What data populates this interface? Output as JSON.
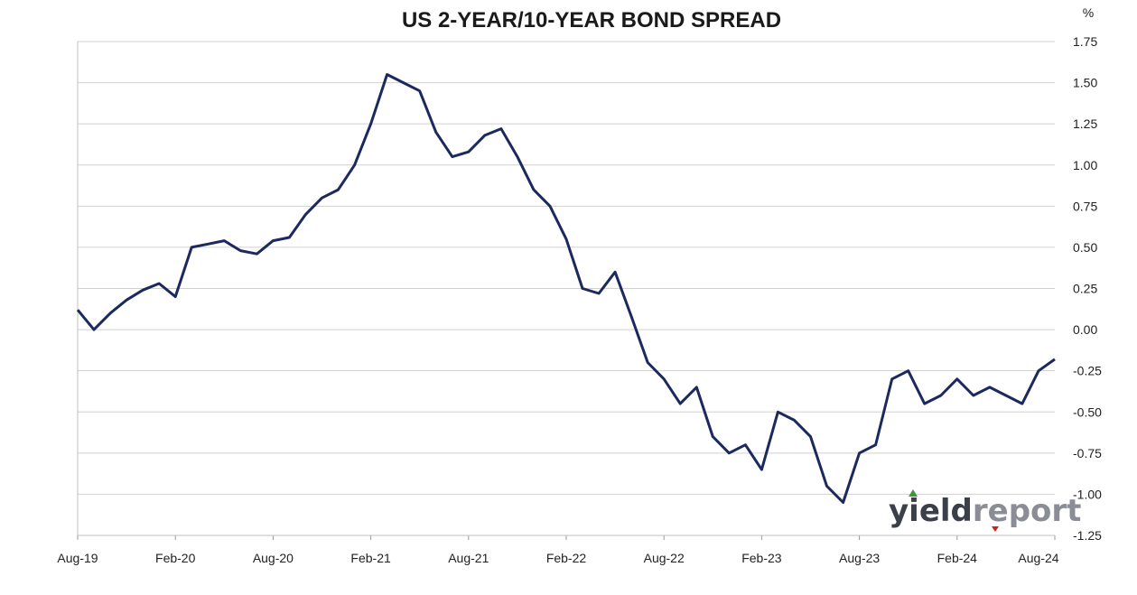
{
  "chart_data": {
    "type": "line",
    "title": "US 2-YEAR/10-YEAR BOND SPREAD",
    "unit_label": "%",
    "xlabel": "",
    "ylabel": "",
    "x_tick_labels": [
      "Aug-19",
      "Feb-20",
      "Aug-20",
      "Feb-21",
      "Aug-21",
      "Feb-22",
      "Aug-22",
      "Feb-23",
      "Aug-23",
      "Feb-24",
      "Aug-24"
    ],
    "y_tick_labels": [
      "1.75",
      "1.50",
      "1.25",
      "1.00",
      "0.75",
      "0.50",
      "0.25",
      "0.00",
      "-0.25",
      "-0.50",
      "-0.75",
      "-1.00",
      "-1.25"
    ],
    "ylim": [
      -1.25,
      1.75
    ],
    "xlim": [
      "Aug-19",
      "Aug-24"
    ],
    "grid": "horizontal",
    "legend": "none",
    "line_color": "#1b2a5e",
    "series": [
      {
        "x": [
          "Aug-19",
          "Sep-19",
          "Oct-19",
          "Nov-19",
          "Dec-19",
          "Jan-20",
          "Feb-20",
          "Mar-20",
          "Apr-20",
          "May-20",
          "Jun-20",
          "Jul-20",
          "Aug-20",
          "Sep-20",
          "Oct-20",
          "Nov-20",
          "Dec-20",
          "Jan-21",
          "Feb-21",
          "Mar-21",
          "Apr-21",
          "May-21",
          "Jun-21",
          "Jul-21",
          "Aug-21",
          "Sep-21",
          "Oct-21",
          "Nov-21",
          "Dec-21",
          "Jan-22",
          "Feb-22",
          "Mar-22",
          "Apr-22",
          "May-22",
          "Jun-22",
          "Jul-22",
          "Aug-22",
          "Sep-22",
          "Oct-22",
          "Nov-22",
          "Dec-22",
          "Jan-23",
          "Feb-23",
          "Mar-23",
          "Apr-23",
          "May-23",
          "Jun-23",
          "Jul-23",
          "Aug-23",
          "Sep-23",
          "Oct-23",
          "Nov-23",
          "Dec-23",
          "Jan-24",
          "Feb-24",
          "Mar-24",
          "Apr-24",
          "May-24",
          "Jun-24",
          "Jul-24",
          "Aug-24"
        ],
        "values": [
          0.12,
          0.0,
          0.1,
          0.18,
          0.24,
          0.28,
          0.2,
          0.5,
          0.52,
          0.54,
          0.48,
          0.46,
          0.54,
          0.56,
          0.7,
          0.8,
          0.85,
          1.0,
          1.25,
          1.55,
          1.5,
          1.45,
          1.2,
          1.05,
          1.08,
          1.18,
          1.22,
          1.05,
          0.85,
          0.75,
          0.55,
          0.25,
          0.22,
          0.35,
          0.08,
          -0.2,
          -0.3,
          -0.45,
          -0.35,
          -0.65,
          -0.75,
          -0.7,
          -0.85,
          -0.5,
          -0.55,
          -0.65,
          -0.95,
          -1.05,
          -0.75,
          -0.7,
          -0.3,
          -0.25,
          -0.45,
          -0.4,
          -0.3,
          -0.4,
          -0.35,
          -0.4,
          -0.45,
          -0.25,
          -0.18
        ]
      }
    ]
  },
  "logo": {
    "part1": "yield",
    "part2": "report"
  }
}
